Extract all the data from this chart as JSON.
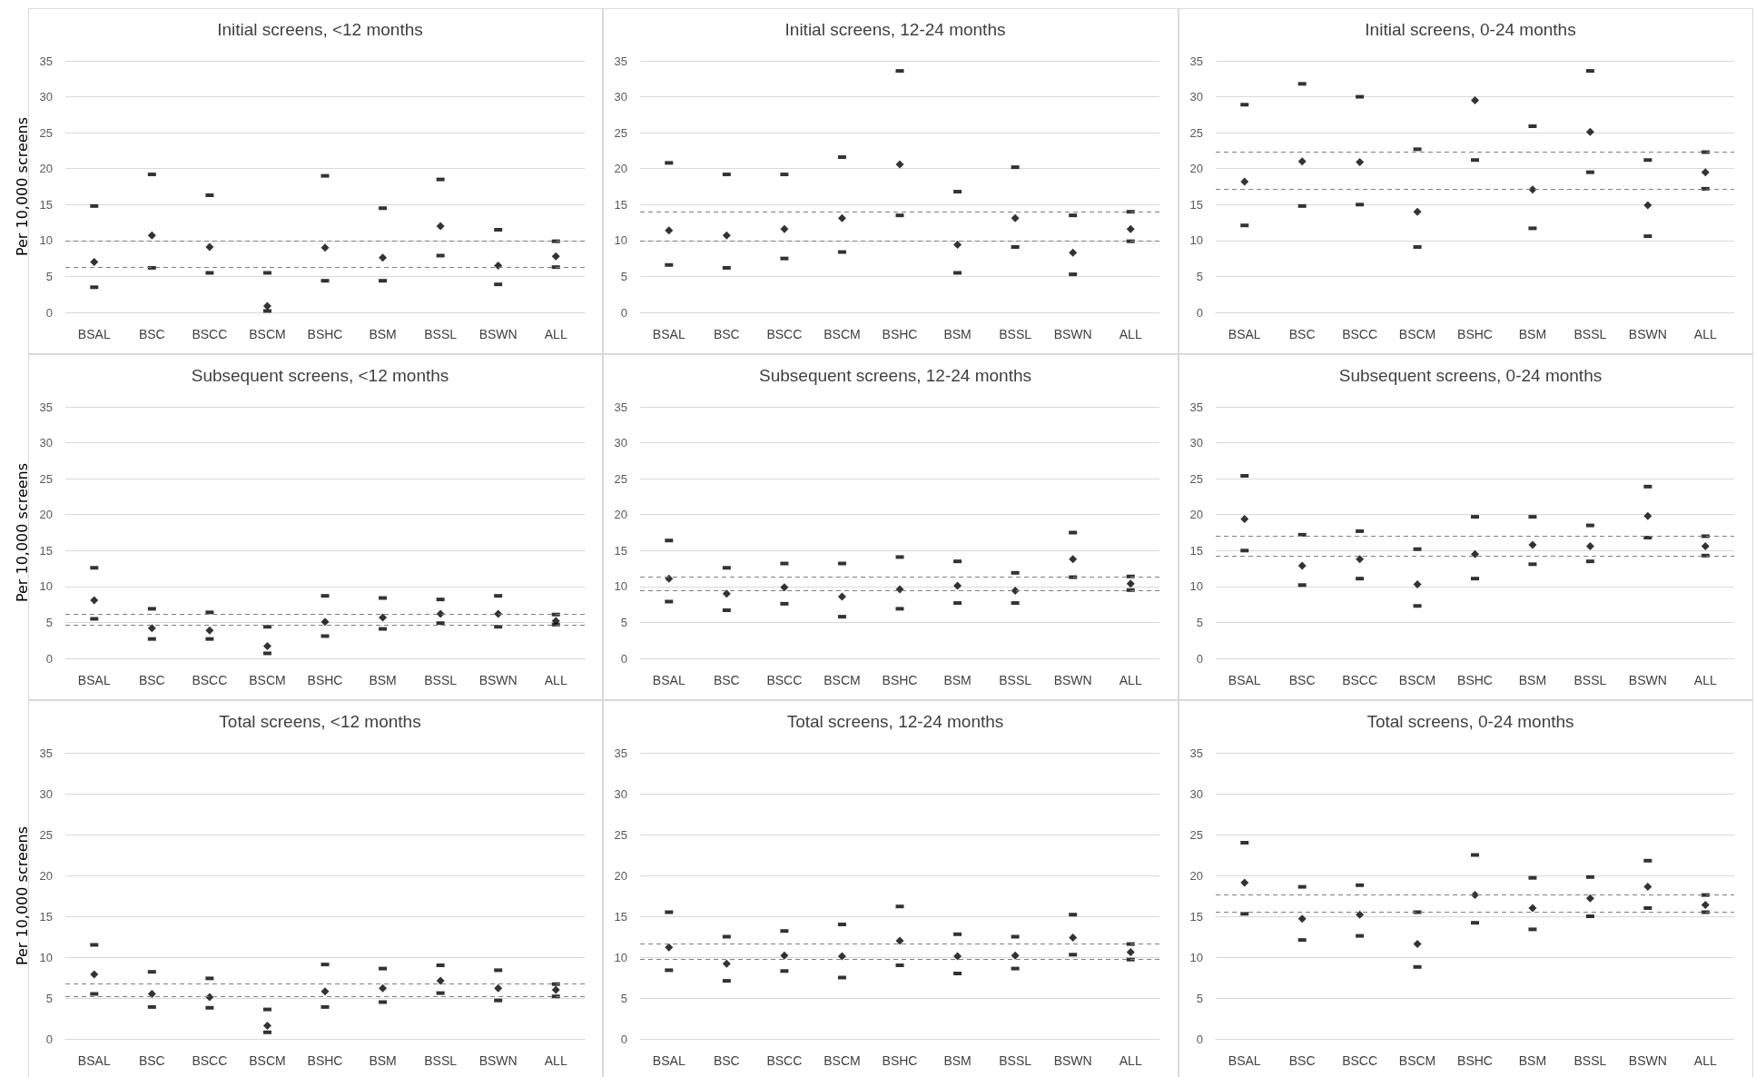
{
  "chart_data": [
    {
      "type": "scatter",
      "title": "Initial screens, <12 months",
      "ylabel": "Per 10,000 screens",
      "categories": [
        "BSAL",
        "BSC",
        "BSCC",
        "BSCM",
        "BSHC",
        "BSM",
        "BSSL",
        "BSWN",
        "ALL"
      ],
      "series": [
        {
          "color": "#000000",
          "values": [
            7.0,
            10.7,
            9.1,
            0.9,
            9.0,
            7.6,
            12.0,
            6.5,
            7.8
          ]
        },
        {
          "color": "#000000",
          "marker": "square",
          "values": [
            3.5,
            6.2,
            5.5,
            0.2,
            4.4,
            4.4,
            7.9,
            3.9,
            6.3
          ]
        },
        {
          "color": "#000000",
          "marker": "square",
          "values": [
            14.8,
            19.2,
            16.3,
            5.5,
            19.0,
            14.5,
            18.5,
            11.5,
            9.9
          ]
        }
      ],
      "ylim": [
        0,
        35
      ],
      "yticks": [
        0,
        5,
        10,
        15,
        20,
        25,
        30,
        35
      ],
      "grid": "y",
      "marker": "diamond",
      "ref_lines": [
        {
          "axis": "y",
          "value": 9.9,
          "color": "#808080",
          "line_style": "dashed"
        },
        {
          "axis": "y",
          "value": 6.3,
          "color": "#808080",
          "line_style": "dashed"
        }
      ]
    },
    {
      "type": "scatter",
      "title": "Initial screens, 12-24 months",
      "categories": [
        "BSAL",
        "BSC",
        "BSCC",
        "BSCM",
        "BSHC",
        "BSM",
        "BSSL",
        "BSWN",
        "ALL"
      ],
      "series": [
        {
          "color": "#000000",
          "values": [
            11.4,
            10.7,
            11.6,
            13.1,
            20.6,
            9.4,
            13.1,
            8.3,
            11.6
          ]
        },
        {
          "color": "#000000",
          "marker": "square",
          "values": [
            6.6,
            6.2,
            7.5,
            8.4,
            13.5,
            5.5,
            9.1,
            5.3,
            9.9
          ]
        },
        {
          "color": "#000000",
          "marker": "square",
          "values": [
            20.8,
            19.2,
            19.2,
            21.6,
            33.6,
            16.8,
            20.2,
            13.5,
            14.0
          ]
        }
      ],
      "ylim": [
        0,
        35
      ],
      "yticks": [
        0,
        5,
        10,
        15,
        20,
        25,
        30,
        35
      ],
      "grid": "y",
      "marker": "diamond",
      "ref_lines": [
        {
          "axis": "y",
          "value": 14.0,
          "color": "#808080",
          "line_style": "dashed"
        },
        {
          "axis": "y",
          "value": 9.9,
          "color": "#808080",
          "line_style": "dashed"
        }
      ]
    },
    {
      "type": "scatter",
      "title": "Initial screens, 0-24 months",
      "categories": [
        "BSAL",
        "BSC",
        "BSCC",
        "BSCM",
        "BSHC",
        "BSM",
        "BSSL",
        "BSWN",
        "ALL"
      ],
      "series": [
        {
          "color": "#000000",
          "values": [
            18.2,
            21.0,
            20.9,
            14.0,
            29.5,
            17.1,
            25.1,
            14.9,
            19.5
          ]
        },
        {
          "color": "#000000",
          "marker": "square",
          "values": [
            12.1,
            14.8,
            15.0,
            9.1,
            21.2,
            11.7,
            19.5,
            10.6,
            17.2
          ]
        },
        {
          "color": "#000000",
          "marker": "square",
          "values": [
            28.9,
            31.8,
            30.0,
            22.7,
            null,
            25.9,
            33.6,
            21.2,
            22.3
          ]
        }
      ],
      "ylim": [
        0,
        35
      ],
      "yticks": [
        0,
        5,
        10,
        15,
        20,
        25,
        30,
        35
      ],
      "grid": "y",
      "marker": "diamond",
      "ref_lines": [
        {
          "axis": "y",
          "value": 22.3,
          "color": "#808080",
          "line_style": "dashed"
        },
        {
          "axis": "y",
          "value": 17.2,
          "color": "#808080",
          "line_style": "dashed"
        }
      ]
    },
    {
      "type": "scatter",
      "title": "Subsequent screens, <12 months",
      "ylabel": "Per 10,000 screens",
      "categories": [
        "BSAL",
        "BSC",
        "BSCC",
        "BSCM",
        "BSHC",
        "BSM",
        "BSSL",
        "BSWN",
        "ALL"
      ],
      "series": [
        {
          "color": "#000000",
          "values": [
            8.1,
            4.2,
            3.9,
            1.7,
            5.1,
            5.7,
            6.2,
            6.2,
            5.2
          ]
        },
        {
          "color": "#000000",
          "marker": "square",
          "values": [
            5.5,
            2.7,
            2.7,
            0.7,
            3.1,
            4.1,
            4.9,
            4.4,
            4.7
          ]
        },
        {
          "color": "#000000",
          "marker": "square",
          "values": [
            12.6,
            6.9,
            6.4,
            4.4,
            8.7,
            8.4,
            8.2,
            8.7,
            6.1
          ]
        }
      ],
      "ylim": [
        0,
        35
      ],
      "yticks": [
        0,
        5,
        10,
        15,
        20,
        25,
        30,
        35
      ],
      "grid": "y",
      "marker": "diamond",
      "ref_lines": [
        {
          "axis": "y",
          "value": 6.1,
          "color": "#808080",
          "line_style": "dashed"
        },
        {
          "axis": "y",
          "value": 4.7,
          "color": "#808080",
          "line_style": "dashed"
        }
      ]
    },
    {
      "type": "scatter",
      "title": "Subsequent screens, 12-24 months",
      "categories": [
        "BSAL",
        "BSC",
        "BSCC",
        "BSCM",
        "BSHC",
        "BSM",
        "BSSL",
        "BSWN",
        "ALL"
      ],
      "series": [
        {
          "color": "#000000",
          "values": [
            11.1,
            9.0,
            9.9,
            8.6,
            9.6,
            10.1,
            9.4,
            13.8,
            10.4
          ]
        },
        {
          "color": "#000000",
          "marker": "square",
          "values": [
            7.9,
            6.7,
            7.6,
            5.8,
            6.9,
            7.7,
            7.7,
            11.3,
            9.5
          ]
        },
        {
          "color": "#000000",
          "marker": "square",
          "values": [
            16.4,
            12.6,
            13.2,
            13.2,
            14.1,
            13.5,
            11.9,
            17.5,
            11.4
          ]
        }
      ],
      "ylim": [
        0,
        35
      ],
      "yticks": [
        0,
        5,
        10,
        15,
        20,
        25,
        30,
        35
      ],
      "grid": "y",
      "marker": "diamond",
      "ref_lines": [
        {
          "axis": "y",
          "value": 11.4,
          "color": "#808080",
          "line_style": "dashed"
        },
        {
          "axis": "y",
          "value": 9.5,
          "color": "#808080",
          "line_style": "dashed"
        }
      ]
    },
    {
      "type": "scatter",
      "title": "Subsequent screens, 0-24 months",
      "categories": [
        "BSAL",
        "BSC",
        "BSCC",
        "BSCM",
        "BSHC",
        "BSM",
        "BSSL",
        "BSWN",
        "ALL"
      ],
      "series": [
        {
          "color": "#000000",
          "values": [
            19.4,
            12.9,
            13.8,
            10.3,
            14.5,
            15.8,
            15.6,
            19.8,
            15.6
          ]
        },
        {
          "color": "#000000",
          "marker": "square",
          "values": [
            15.0,
            10.2,
            11.1,
            7.3,
            11.1,
            13.1,
            13.5,
            16.8,
            14.3
          ]
        },
        {
          "color": "#000000",
          "marker": "square",
          "values": [
            25.4,
            17.2,
            17.7,
            15.2,
            19.7,
            19.7,
            18.5,
            23.9,
            17.0
          ]
        }
      ],
      "ylim": [
        0,
        35
      ],
      "yticks": [
        0,
        5,
        10,
        15,
        20,
        25,
        30,
        35
      ],
      "grid": "y",
      "marker": "diamond",
      "ref_lines": [
        {
          "axis": "y",
          "value": 17.0,
          "color": "#808080",
          "line_style": "dashed"
        },
        {
          "axis": "y",
          "value": 14.3,
          "color": "#808080",
          "line_style": "dashed"
        }
      ]
    },
    {
      "type": "scatter",
      "title": "Total screens, <12 months",
      "ylabel": "Per 10,000 screens",
      "categories": [
        "BSAL",
        "BSC",
        "BSCC",
        "BSCM",
        "BSHC",
        "BSM",
        "BSSL",
        "BSWN",
        "ALL"
      ],
      "series": [
        {
          "color": "#000000",
          "values": [
            7.9,
            5.5,
            5.1,
            1.6,
            5.8,
            6.2,
            7.1,
            6.2,
            6.0
          ]
        },
        {
          "color": "#000000",
          "marker": "square",
          "values": [
            5.5,
            3.9,
            3.8,
            0.8,
            3.9,
            4.5,
            5.6,
            4.7,
            5.2
          ]
        },
        {
          "color": "#000000",
          "marker": "square",
          "values": [
            11.5,
            8.2,
            7.4,
            3.6,
            9.1,
            8.6,
            9.0,
            8.4,
            6.7
          ]
        }
      ],
      "ylim": [
        0,
        35
      ],
      "yticks": [
        0,
        5,
        10,
        15,
        20,
        25,
        30,
        35
      ],
      "grid": "y",
      "marker": "diamond",
      "ref_lines": [
        {
          "axis": "y",
          "value": 6.7,
          "color": "#808080",
          "line_style": "dashed"
        },
        {
          "axis": "y",
          "value": 5.2,
          "color": "#808080",
          "line_style": "dashed"
        }
      ]
    },
    {
      "type": "scatter",
      "title": "Total screens, 12-24 months",
      "categories": [
        "BSAL",
        "BSC",
        "BSCC",
        "BSCM",
        "BSHC",
        "BSM",
        "BSSL",
        "BSWN",
        "ALL"
      ],
      "series": [
        {
          "color": "#000000",
          "values": [
            11.2,
            9.2,
            10.2,
            10.1,
            12.0,
            10.1,
            10.2,
            12.4,
            10.6
          ]
        },
        {
          "color": "#000000",
          "marker": "square",
          "values": [
            8.4,
            7.1,
            8.3,
            7.5,
            9.0,
            8.0,
            8.6,
            10.3,
            9.7
          ]
        },
        {
          "color": "#000000",
          "marker": "square",
          "values": [
            15.5,
            12.5,
            13.2,
            14.0,
            16.2,
            12.8,
            12.5,
            15.2,
            11.6
          ]
        }
      ],
      "ylim": [
        0,
        35
      ],
      "yticks": [
        0,
        5,
        10,
        15,
        20,
        25,
        30,
        35
      ],
      "grid": "y",
      "marker": "diamond",
      "ref_lines": [
        {
          "axis": "y",
          "value": 11.6,
          "color": "#808080",
          "line_style": "dashed"
        },
        {
          "axis": "y",
          "value": 9.7,
          "color": "#808080",
          "line_style": "dashed"
        }
      ]
    },
    {
      "type": "scatter",
      "title": "Total screens, 0-24 months",
      "categories": [
        "BSAL",
        "BSC",
        "BSCC",
        "BSCM",
        "BSHC",
        "BSM",
        "BSSL",
        "BSWN",
        "ALL"
      ],
      "series": [
        {
          "color": "#000000",
          "values": [
            19.1,
            14.7,
            15.2,
            11.6,
            17.6,
            16.0,
            17.2,
            18.6,
            16.4
          ]
        },
        {
          "color": "#000000",
          "marker": "square",
          "values": [
            15.3,
            12.1,
            12.6,
            8.8,
            14.2,
            13.4,
            15.0,
            16.0,
            15.5
          ]
        },
        {
          "color": "#000000",
          "marker": "square",
          "values": [
            24.0,
            18.6,
            18.8,
            15.5,
            22.5,
            19.7,
            19.8,
            21.8,
            17.6
          ]
        }
      ],
      "ylim": [
        0,
        35
      ],
      "yticks": [
        0,
        5,
        10,
        15,
        20,
        25,
        30,
        35
      ],
      "grid": "y",
      "marker": "diamond",
      "ref_lines": [
        {
          "axis": "y",
          "value": 17.6,
          "color": "#808080",
          "line_style": "dashed"
        },
        {
          "axis": "y",
          "value": 15.5,
          "color": "#808080",
          "line_style": "dashed"
        }
      ]
    }
  ]
}
